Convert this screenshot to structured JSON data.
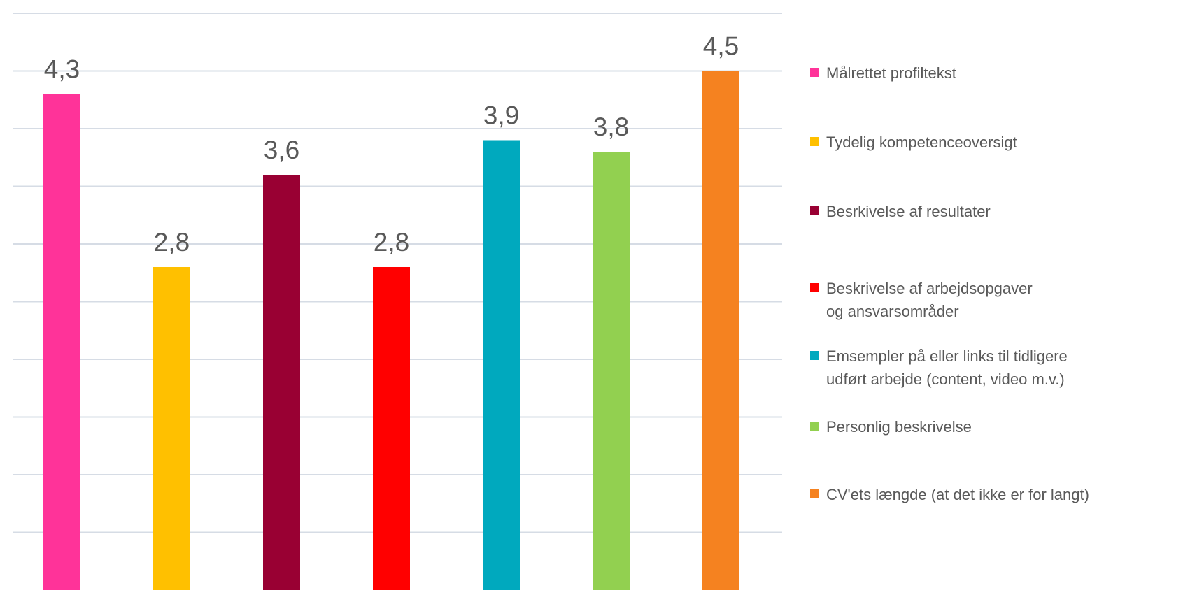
{
  "chart_data": {
    "type": "bar",
    "categories": [
      "Målrettet profiltekst",
      "Tydelig kompetenceoversigt",
      "Besrkivelse af resultater",
      "Beskrivelse af arbejdsopgaver og ansvarsområder",
      "Emsempler på eller links til tidligere udført arbejde (content, video m.v.)",
      "Personlig beskrivelse",
      "CV'ets længde (at det ikke er for langt)"
    ],
    "values": [
      4.3,
      2.8,
      3.6,
      2.8,
      3.9,
      3.8,
      4.5
    ],
    "value_labels": [
      "4,3",
      "2,8",
      "3,6",
      "2,8",
      "3,9",
      "3,8",
      "4,5"
    ],
    "colors": [
      "#FF3399",
      "#FFC000",
      "#990033",
      "#FF0000",
      "#00A9BE",
      "#92D050",
      "#F58220"
    ],
    "ylim": [
      0,
      5
    ],
    "grid": true,
    "legend_position": "right",
    "title": "",
    "xlabel": "",
    "ylabel": ""
  },
  "legend": [
    {
      "label": "Målrettet profiltekst",
      "color": "#FF3399"
    },
    {
      "label": "Tydelig kompetenceoversigt",
      "color": "#FFC000"
    },
    {
      "label": "Besrkivelse af resultater",
      "color": "#990033"
    },
    {
      "label": "Beskrivelse af arbejdsopgaver og ansvarsområder",
      "color": "#FF0000"
    },
    {
      "label": "Emsempler på eller links til tidligere udført arbejde (content, video m.v.)",
      "color": "#00A9BE"
    },
    {
      "label": "Personlig beskrivelse",
      "color": "#92D050"
    },
    {
      "label": "CV'ets længde (at det ikke er for langt)",
      "color": "#F58220"
    }
  ]
}
